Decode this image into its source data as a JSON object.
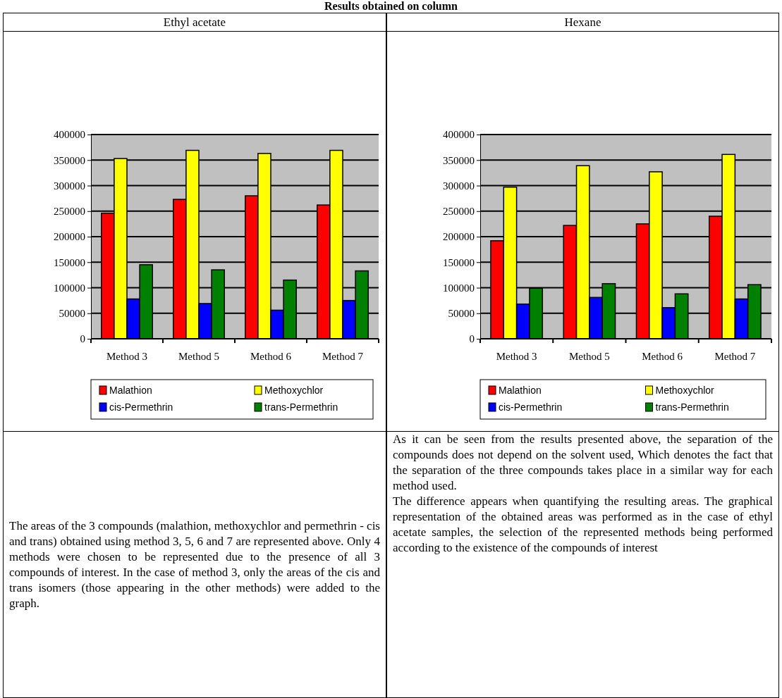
{
  "chart_data": [
    {
      "type": "bar",
      "title": "Results obtained on column",
      "subtitle": "Ethyl acetate",
      "categories": [
        "Method 3",
        "Method 5",
        "Method 6",
        "Method 7"
      ],
      "series": [
        {
          "name": "Malathion",
          "color": "#ff0000",
          "values": [
            246000,
            273000,
            280000,
            262000
          ]
        },
        {
          "name": "Methoxychlor",
          "color": "#ffff00",
          "values": [
            353000,
            369000,
            363000,
            369000
          ]
        },
        {
          "name": "cis-Permethrin",
          "color": "#0000ff",
          "values": [
            78000,
            69000,
            56000,
            75000
          ]
        },
        {
          "name": "trans-Permethrin",
          "color": "#008000",
          "values": [
            145000,
            135000,
            115000,
            133000
          ]
        }
      ],
      "ylim": [
        0,
        400000
      ],
      "yticks": [
        0,
        50000,
        100000,
        150000,
        200000,
        250000,
        300000,
        350000,
        400000
      ],
      "grid": "y",
      "legend": "bottom",
      "annotations": [
        "The areas of the 3 compounds (malathion, methoxychlor and permethrin - cis and trans) obtained using method 3, 5, 6 and 7 are represented above. Only 4 methods were chosen to be represented due to the presence of all 3 compounds of interest. In the case of method 3, only the areas of the cis and trans isomers (those appearing in the other methods) were added to the graph."
      ]
    },
    {
      "type": "bar",
      "subtitle": "Hexane",
      "categories": [
        "Method 3",
        "Method 5",
        "Method 6",
        "Method 7"
      ],
      "series": [
        {
          "name": "Malathion",
          "color": "#ff0000",
          "values": [
            192000,
            222000,
            225000,
            240000
          ]
        },
        {
          "name": "Methoxychlor",
          "color": "#ffff00",
          "values": [
            297000,
            339000,
            327000,
            361000
          ]
        },
        {
          "name": "cis-Permethrin",
          "color": "#0000ff",
          "values": [
            68000,
            81000,
            61000,
            78000
          ]
        },
        {
          "name": "trans-Permethrin",
          "color": "#008000",
          "values": [
            99000,
            108000,
            88000,
            106000
          ]
        }
      ],
      "ylim": [
        0,
        400000
      ],
      "yticks": [
        0,
        50000,
        100000,
        150000,
        200000,
        250000,
        300000,
        350000,
        400000
      ],
      "grid": "y",
      "legend": "bottom",
      "annotations": [
        "As it can be seen from the results presented above, the separation of the compounds does not depend on the solvent used, Which denotes the fact that the separation of the three compounds takes place in a similar way for each method used.",
        "The difference appears when quantifying the resulting areas. The graphical representation of the obtained areas was performed as in the case of ethyl acetate samples, the selection of the represented methods being performed according to the existence of the compounds of interest"
      ]
    }
  ]
}
